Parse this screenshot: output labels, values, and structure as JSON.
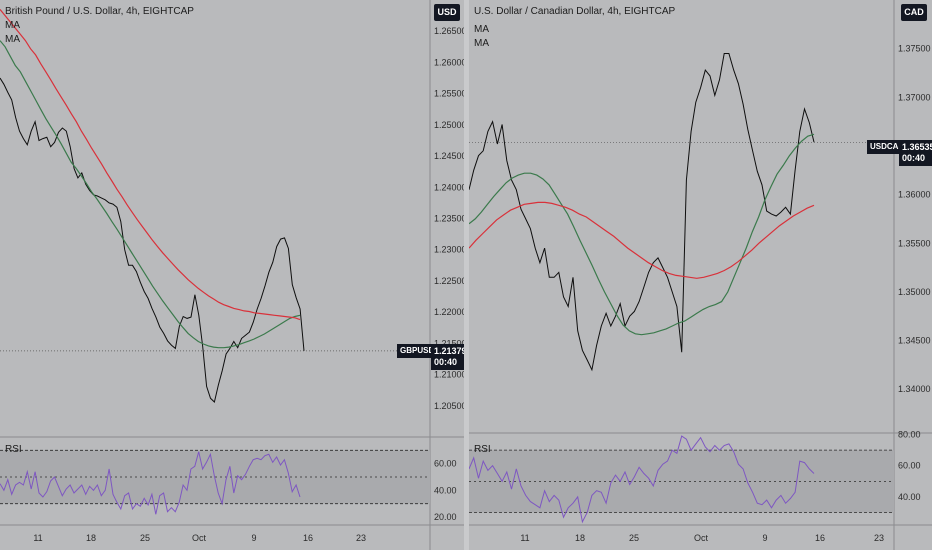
{
  "chart_data": [
    {
      "type": "line",
      "title": "British Pound / U.S. Dollar, 4h, EIGHTCAP",
      "indicators": [
        "MA",
        "MA"
      ],
      "currency": "USD",
      "symbol": "GBPUSD",
      "last_price": "1.21379",
      "countdown": "00:40",
      "ylim": [
        1.2,
        1.27
      ],
      "y_ticks": [
        "1.26500",
        "1.26000",
        "1.25500",
        "1.25000",
        "1.24500",
        "1.24000",
        "1.23500",
        "1.23000",
        "1.22500",
        "1.22000",
        "1.21500",
        "1.21000",
        "1.20500"
      ],
      "x_ticks": [
        "11",
        "18",
        "25",
        "Oct",
        "9",
        "16",
        "23"
      ],
      "rsi": {
        "label": "RSI",
        "ticks": [
          "60.00",
          "40.00",
          "20.00"
        ],
        "upper": 70,
        "mid": 50,
        "lower": 30,
        "ylim": [
          14,
          80
        ]
      },
      "series": [
        {
          "color": "#0e0e0e",
          "values": [
            1.2575,
            1.2565,
            1.2552,
            1.254,
            1.2512,
            1.249,
            1.2478,
            1.2468,
            1.249,
            1.2505,
            1.2475,
            1.2478,
            1.248,
            1.2465,
            1.2472,
            1.2488,
            1.2495,
            1.249,
            1.2465,
            1.243,
            1.2415,
            1.2423,
            1.2405,
            1.2395,
            1.2388,
            1.2386,
            1.2383,
            1.238,
            1.2375,
            1.2373,
            1.2368,
            1.2345,
            1.23,
            1.2275,
            1.2275,
            1.2265,
            1.2248,
            1.2233,
            1.2222,
            1.2206,
            1.2192,
            1.2176,
            1.2166,
            1.2154,
            1.2147,
            1.2142,
            1.2177,
            1.2193,
            1.219,
            1.2192,
            1.2228,
            1.2195,
            1.2145,
            1.2081,
            1.2062,
            1.2056,
            1.2083,
            1.2106,
            1.2133,
            1.2142,
            1.2153,
            1.2143,
            1.2158,
            1.2163,
            1.2168,
            1.2184,
            1.2205,
            1.2222,
            1.2242,
            1.2264,
            1.228,
            1.2305,
            1.2317,
            1.2319,
            1.2302,
            1.2244,
            1.2223,
            1.2205,
            1.2138
          ]
        },
        {
          "color": "#3b7a4c",
          "values": [
            1.2635,
            1.2625,
            1.261,
            1.2595,
            1.2585,
            1.257,
            1.2555,
            1.254,
            1.2525,
            1.251,
            1.2497,
            1.2484,
            1.247,
            1.2455,
            1.244,
            1.243,
            1.2418,
            1.2406,
            1.2393,
            1.2382,
            1.237,
            1.2358,
            1.2345,
            1.2333,
            1.232,
            1.2307,
            1.2294,
            1.2281,
            1.2268,
            1.2255,
            1.2242,
            1.223,
            1.2218,
            1.2207,
            1.2196,
            1.2185,
            1.2175,
            1.2166,
            1.2159,
            1.2153,
            1.2149,
            1.2146,
            1.2144,
            1.2143,
            1.2143,
            1.2144,
            1.2146,
            1.2148,
            1.2151,
            1.2154,
            1.2157,
            1.2161,
            1.2165,
            1.217,
            1.2175,
            1.218,
            1.2185,
            1.219,
            1.2193,
            1.2195
          ]
        },
        {
          "color": "#d9313a",
          "values": [
            1.2685,
            1.2675,
            1.2665,
            1.2655,
            1.2645,
            1.2635,
            1.2622,
            1.2612,
            1.2598,
            1.2585,
            1.2572,
            1.2558,
            1.2545,
            1.2532,
            1.2518,
            1.2505,
            1.249,
            1.2477,
            1.2463,
            1.245,
            1.2437,
            1.2423,
            1.241,
            1.2397,
            1.2385,
            1.2372,
            1.236,
            1.2348,
            1.2337,
            1.2326,
            1.2315,
            1.2305,
            1.2295,
            1.2286,
            1.2277,
            1.2268,
            1.226,
            1.2252,
            1.2245,
            1.2238,
            1.2232,
            1.2226,
            1.2221,
            1.2216,
            1.2212,
            1.2209,
            1.2206,
            1.2204,
            1.2202,
            1.2201,
            1.2199,
            1.2198,
            1.2197,
            1.2196,
            1.2195,
            1.2194,
            1.2193,
            1.2192,
            1.2191,
            1.2188
          ]
        }
      ],
      "rsi_values": [
        45,
        40,
        48,
        37,
        44,
        46,
        44,
        54,
        41,
        54,
        38,
        35,
        39,
        47,
        50,
        43,
        36,
        41,
        44,
        38,
        41,
        44,
        37,
        43,
        40,
        44,
        36,
        40,
        56,
        37,
        31,
        26,
        36,
        38,
        26,
        30,
        28,
        34,
        29,
        37,
        22,
        36,
        38,
        24,
        27,
        24,
        31,
        44,
        40,
        56,
        58,
        69,
        56,
        61,
        67,
        51,
        38,
        30,
        48,
        58,
        38,
        51,
        48,
        52,
        58,
        63,
        64,
        63,
        66,
        67,
        61,
        65,
        59,
        63,
        53,
        39,
        44,
        35
      ]
    },
    {
      "type": "line",
      "title": "U.S. Dollar / Canadian Dollar, 4h, EIGHTCAP",
      "indicators": [
        "MA",
        "MA"
      ],
      "currency": "CAD",
      "symbol": "USDCAD",
      "last_price": "1.36535",
      "countdown": "00:40",
      "ylim": [
        1.3355,
        1.38
      ],
      "y_ticks": [
        "1.37500",
        "1.37000",
        "1.36500",
        "1.36000",
        "1.35500",
        "1.35000",
        "1.34500",
        "1.34000"
      ],
      "x_ticks": [
        "11",
        "18",
        "25",
        "Oct",
        "9",
        "16",
        "23"
      ],
      "rsi": {
        "label": "RSI",
        "ticks": [
          "80.00",
          "60.00",
          "40.00"
        ],
        "upper": 70,
        "mid": 50,
        "lower": 30,
        "ylim": [
          22,
          81
        ]
      },
      "series": [
        {
          "color": "#0e0e0e",
          "values": [
            1.3605,
            1.3625,
            1.364,
            1.3645,
            1.3665,
            1.3675,
            1.3652,
            1.3672,
            1.3635,
            1.3615,
            1.3605,
            1.3585,
            1.3575,
            1.3565,
            1.3545,
            1.353,
            1.3545,
            1.3515,
            1.3515,
            1.352,
            1.3495,
            1.3485,
            1.3515,
            1.346,
            1.344,
            1.343,
            1.342,
            1.3445,
            1.3465,
            1.3478,
            1.3465,
            1.3475,
            1.3488,
            1.3465,
            1.3475,
            1.348,
            1.349,
            1.3505,
            1.352,
            1.353,
            1.3535,
            1.3525,
            1.3515,
            1.35,
            1.3485,
            1.3438,
            1.3615,
            1.3665,
            1.3695,
            1.371,
            1.3728,
            1.3722,
            1.3702,
            1.3718,
            1.3745,
            1.3745,
            1.3728,
            1.3714,
            1.3693,
            1.3667,
            1.3645,
            1.3624,
            1.361,
            1.3583,
            1.358,
            1.3578,
            1.3582,
            1.3587,
            1.358,
            1.3625,
            1.3665,
            1.3688,
            1.3674,
            1.3654
          ]
        },
        {
          "color": "#3b7a4c",
          "values": [
            1.357,
            1.3575,
            1.3582,
            1.359,
            1.3598,
            1.3605,
            1.3612,
            1.3617,
            1.362,
            1.3622,
            1.3622,
            1.362,
            1.3616,
            1.361,
            1.36,
            1.359,
            1.358,
            1.3567,
            1.3553,
            1.354,
            1.3527,
            1.3513,
            1.35,
            1.3488,
            1.3476,
            1.3466,
            1.346,
            1.3457,
            1.3456,
            1.3457,
            1.3458,
            1.346,
            1.3462,
            1.3465,
            1.3468,
            1.347,
            1.3474,
            1.3478,
            1.3482,
            1.3485,
            1.3487,
            1.349,
            1.35,
            1.3515,
            1.353,
            1.3545,
            1.3562,
            1.3577,
            1.3594,
            1.3608,
            1.3621,
            1.363,
            1.364,
            1.3648,
            1.3655,
            1.366,
            1.3662
          ]
        },
        {
          "color": "#d9313a",
          "values": [
            1.3545,
            1.3553,
            1.356,
            1.3567,
            1.3574,
            1.3579,
            1.3584,
            1.3587,
            1.359,
            1.3591,
            1.3592,
            1.3592,
            1.3591,
            1.3589,
            1.3587,
            1.3584,
            1.358,
            1.3577,
            1.3572,
            1.3567,
            1.3562,
            1.3557,
            1.3551,
            1.3545,
            1.354,
            1.3535,
            1.353,
            1.3526,
            1.3522,
            1.3519,
            1.3517,
            1.3516,
            1.3515,
            1.3514,
            1.3515,
            1.3517,
            1.3519,
            1.3522,
            1.3526,
            1.3531,
            1.3537,
            1.3543,
            1.355,
            1.3556,
            1.3562,
            1.3568,
            1.3573,
            1.3578,
            1.3582,
            1.3586,
            1.3589
          ]
        }
      ],
      "rsi_values": [
        58,
        65,
        52,
        63,
        57,
        60,
        55,
        50,
        56,
        45,
        58,
        47,
        41,
        37,
        35,
        33,
        44,
        37,
        41,
        38,
        27,
        33,
        36,
        40,
        24,
        30,
        41,
        44,
        43,
        36,
        49,
        54,
        50,
        56,
        48,
        53,
        59,
        55,
        52,
        47,
        57,
        61,
        63,
        70,
        68,
        79,
        77,
        70,
        74,
        78,
        72,
        69,
        73,
        70,
        73,
        74,
        69,
        61,
        58,
        49,
        43,
        36,
        35,
        38,
        33,
        38,
        41,
        36,
        39,
        43,
        63,
        62,
        58,
        55
      ]
    }
  ]
}
